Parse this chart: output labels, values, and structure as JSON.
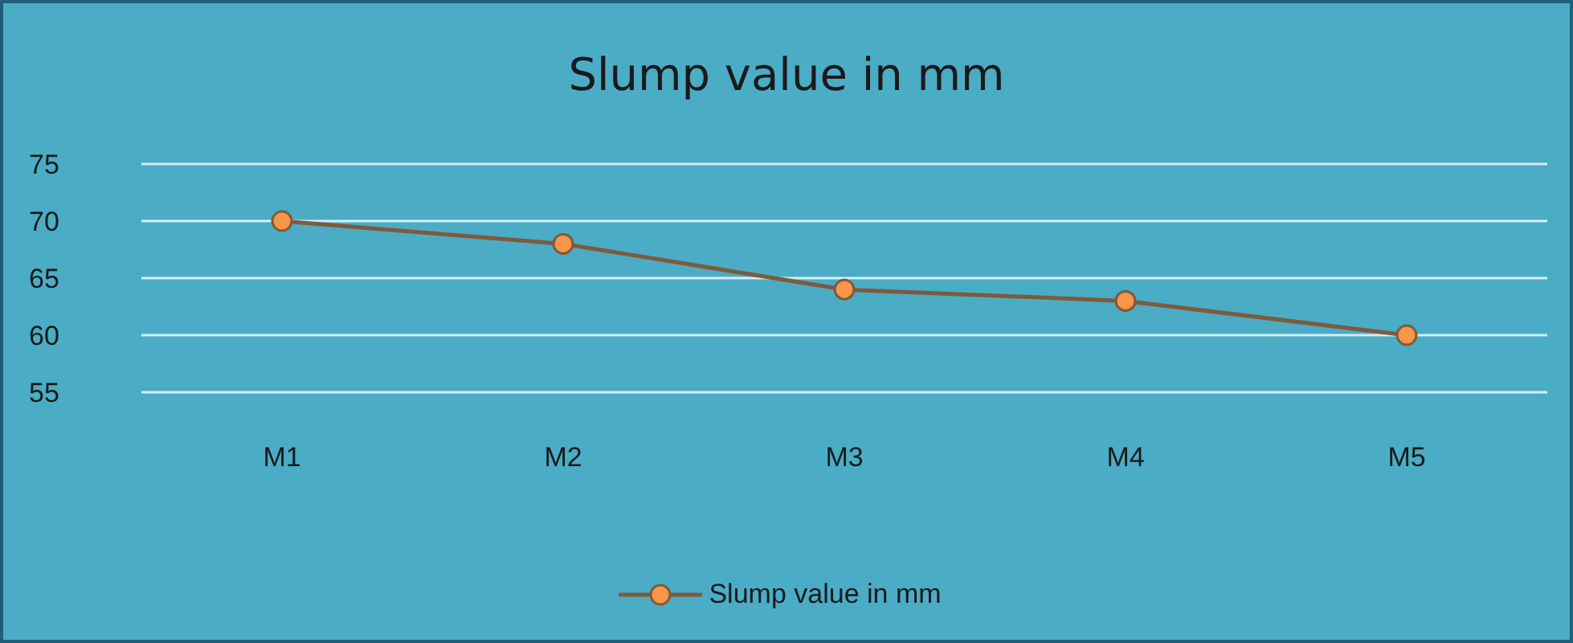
{
  "chart_data": {
    "type": "line",
    "title": "Slump value in mm",
    "categories": [
      "M1",
      "M2",
      "M3",
      "M4",
      "M5"
    ],
    "series": [
      {
        "name": "Slump value in mm",
        "color": "#7f5a3c",
        "values": [
          70,
          68,
          64,
          63,
          60
        ]
      }
    ],
    "ylim": [
      55,
      75
    ],
    "yticks": [
      55,
      60,
      65,
      70,
      75
    ],
    "grid": "y",
    "legend": "bottom",
    "marker": "circle"
  }
}
